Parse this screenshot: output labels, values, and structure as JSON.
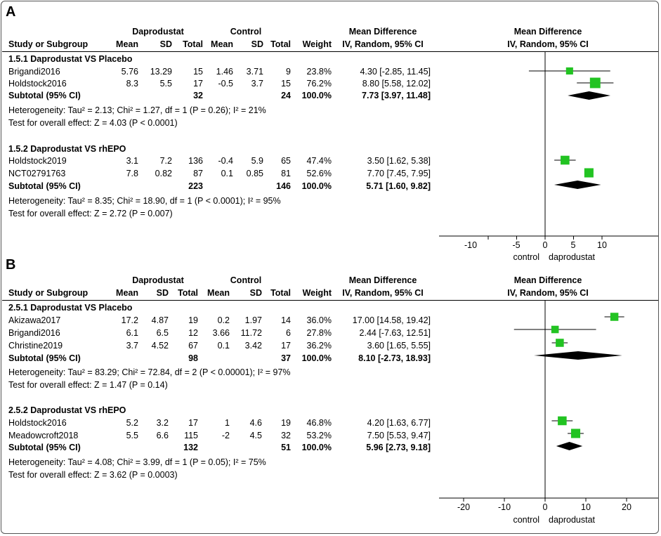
{
  "panels": [
    {
      "letter": "A",
      "header": {
        "group1": "Daprodustat",
        "group2": "Control",
        "md_title": "Mean Difference",
        "md_sub": "IV, Random, 95% CI",
        "plot_title": "Mean Difference",
        "plot_sub": "IV, Random, 95% CI",
        "cols": [
          "Study or Subgroup",
          "Mean",
          "SD",
          "Total",
          "Mean",
          "SD",
          "Total",
          "Weight"
        ]
      },
      "subgroups": [
        {
          "title": "1.5.1 Daprodustat VS Placebo",
          "studies": [
            {
              "name": "Brigandi2016",
              "m1": "5.76",
              "sd1": "13.29",
              "n1": "15",
              "m2": "1.46",
              "sd2": "3.71",
              "n2": "9",
              "weight": "23.8%",
              "ci": "4.30 [-2.85, 11.45]",
              "est": 4.3,
              "lo": -2.85,
              "hi": 11.45,
              "w": 23.8
            },
            {
              "name": "Holdstock2016",
              "m1": "8.3",
              "sd1": "5.5",
              "n1": "17",
              "m2": "-0.5",
              "sd2": "3.7",
              "n2": "15",
              "weight": "76.2%",
              "ci": "8.80 [5.58, 12.02]",
              "est": 8.8,
              "lo": 5.58,
              "hi": 12.02,
              "w": 76.2
            }
          ],
          "subtotal": {
            "label": "Subtotal (95% CI)",
            "n1": "32",
            "n2": "24",
            "weight": "100.0%",
            "ci": "7.73 [3.97, 11.48]",
            "est": 7.73,
            "lo": 3.97,
            "hi": 11.48
          },
          "heterogeneity": "Heterogeneity: Tau² = 2.13; Chi² = 1.27, df = 1 (P = 0.26); I² = 21%",
          "overall": "Test for overall effect: Z = 4.03 (P < 0.0001)"
        },
        {
          "title": "1.5.2 Daprodustat VS rhEPO",
          "studies": [
            {
              "name": "Holdstock2019",
              "m1": "3.1",
              "sd1": "7.2",
              "n1": "136",
              "m2": "-0.4",
              "sd2": "5.9",
              "n2": "65",
              "weight": "47.4%",
              "ci": "3.50 [1.62, 5.38]",
              "est": 3.5,
              "lo": 1.62,
              "hi": 5.38,
              "w": 47.4
            },
            {
              "name": "NCT02791763",
              "m1": "7.8",
              "sd1": "0.82",
              "n1": "87",
              "m2": "0.1",
              "sd2": "0.85",
              "n2": "81",
              "weight": "52.6%",
              "ci": "7.70 [7.45, 7.95]",
              "est": 7.7,
              "lo": 7.45,
              "hi": 7.95,
              "w": 52.6
            }
          ],
          "subtotal": {
            "label": "Subtotal (95% CI)",
            "n1": "223",
            "n2": "146",
            "weight": "100.0%",
            "ci": "5.71 [1.60, 9.82]",
            "est": 5.71,
            "lo": 1.6,
            "hi": 9.82
          },
          "heterogeneity": "Heterogeneity: Tau² = 8.35; Chi² = 18.90, df = 1 (P < 0.0001); I² = 95%",
          "overall": "Test for overall effect: Z = 2.72 (P = 0.007)"
        }
      ],
      "axis": {
        "ticks": [
          -10,
          -5,
          0,
          5,
          10
        ],
        "tick_labels": [
          "-10",
          "-5",
          "0",
          "5",
          "10"
        ],
        "left_label": "control",
        "right_label": "daprodustat"
      }
    },
    {
      "letter": "B",
      "header": {
        "group1": "Daprodustat",
        "group2": "Control",
        "md_title": "Mean Difference",
        "md_sub": "IV, Random, 95% CI",
        "plot_title": "Mean Difference",
        "plot_sub": "IV, Random, 95% CI",
        "cols": [
          "Study or Subgroup",
          "Mean",
          "SD",
          "Total",
          "Mean",
          "SD",
          "Total",
          "Weight"
        ]
      },
      "subgroups": [
        {
          "title": "2.5.1 Daprodustat VS Placebo",
          "studies": [
            {
              "name": "Akizawa2017",
              "m1": "17.2",
              "sd1": "4.87",
              "n1": "19",
              "m2": "0.2",
              "sd2": "1.97",
              "n2": "14",
              "weight": "36.0%",
              "ci": "17.00 [14.58, 19.42]",
              "est": 17.0,
              "lo": 14.58,
              "hi": 19.42,
              "w": 36.0
            },
            {
              "name": "Brigandi2016",
              "m1": "6.1",
              "sd1": "6.5",
              "n1": "12",
              "m2": "3.66",
              "sd2": "11.72",
              "n2": "6",
              "weight": "27.8%",
              "ci": "2.44 [-7.63, 12.51]",
              "est": 2.44,
              "lo": -7.63,
              "hi": 12.51,
              "w": 27.8
            },
            {
              "name": "Christine2019",
              "m1": "3.7",
              "sd1": "4.52",
              "n1": "67",
              "m2": "0.1",
              "sd2": "3.42",
              "n2": "17",
              "weight": "36.2%",
              "ci": "3.60 [1.65, 5.55]",
              "est": 3.6,
              "lo": 1.65,
              "hi": 5.55,
              "w": 36.2
            }
          ],
          "subtotal": {
            "label": "Subtotal (95% CI)",
            "n1": "98",
            "n2": "37",
            "weight": "100.0%",
            "ci": "8.10 [-2.73, 18.93]",
            "est": 8.1,
            "lo": -2.73,
            "hi": 18.93
          },
          "heterogeneity": "Heterogeneity: Tau² = 83.29; Chi² = 72.84, df = 2 (P < 0.00001); I² = 97%",
          "overall": "Test for overall effect: Z = 1.47 (P = 0.14)"
        },
        {
          "title": "2.5.2 Daprodustat VS rhEPO",
          "studies": [
            {
              "name": "Holdstock2016",
              "m1": "5.2",
              "sd1": "3.2",
              "n1": "17",
              "m2": "1",
              "sd2": "4.6",
              "n2": "19",
              "weight": "46.8%",
              "ci": "4.20 [1.63, 6.77]",
              "est": 4.2,
              "lo": 1.63,
              "hi": 6.77,
              "w": 46.8
            },
            {
              "name": "Meadowcroft2018",
              "m1": "5.5",
              "sd1": "6.6",
              "n1": "115",
              "m2": "-2",
              "sd2": "4.5",
              "n2": "32",
              "weight": "53.2%",
              "ci": "7.50 [5.53, 9.47]",
              "est": 7.5,
              "lo": 5.53,
              "hi": 9.47,
              "w": 53.2
            }
          ],
          "subtotal": {
            "label": "Subtotal (95% CI)",
            "n1": "132",
            "n2": "51",
            "weight": "100.0%",
            "ci": "5.96 [2.73, 9.18]",
            "est": 5.96,
            "lo": 2.73,
            "hi": 9.18
          },
          "heterogeneity": "Heterogeneity: Tau² = 4.08; Chi² = 3.99, df = 1 (P = 0.05); I² = 75%",
          "overall": "Test for overall effect: Z = 3.62 (P = 0.0003)"
        }
      ],
      "axis": {
        "ticks": [
          -20,
          -10,
          0,
          10,
          20
        ],
        "tick_labels": [
          "-20",
          "-10",
          "0",
          "10",
          "20"
        ],
        "left_label": "control",
        "right_label": "daprodustat"
      }
    }
  ],
  "chart_data": [
    {
      "type": "forest",
      "title": "A",
      "xlabel": "Mean Difference (IV, Random, 95% CI)",
      "xlim": [
        -20,
        20
      ],
      "x_ticks": [
        -10,
        -5,
        0,
        5,
        10
      ],
      "series": [
        {
          "name": "Brigandi2016",
          "estimate": 4.3,
          "ci": [
            -2.85,
            11.45
          ],
          "weight": 23.8
        },
        {
          "name": "Holdstock2016",
          "estimate": 8.8,
          "ci": [
            5.58,
            12.02
          ],
          "weight": 76.2
        },
        {
          "name": "Subtotal 1.5.1",
          "estimate": 7.73,
          "ci": [
            3.97,
            11.48
          ]
        },
        {
          "name": "Holdstock2019",
          "estimate": 3.5,
          "ci": [
            1.62,
            5.38
          ],
          "weight": 47.4
        },
        {
          "name": "NCT02791763",
          "estimate": 7.7,
          "ci": [
            7.45,
            7.95
          ],
          "weight": 52.6
        },
        {
          "name": "Subtotal 1.5.2",
          "estimate": 5.71,
          "ci": [
            1.6,
            9.82
          ]
        }
      ]
    },
    {
      "type": "forest",
      "title": "B",
      "xlabel": "Mean Difference (IV, Random, 95% CI)",
      "xlim": [
        -27,
        27
      ],
      "x_ticks": [
        -20,
        -10,
        0,
        10,
        20
      ],
      "series": [
        {
          "name": "Akizawa2017",
          "estimate": 17.0,
          "ci": [
            14.58,
            19.42
          ],
          "weight": 36.0
        },
        {
          "name": "Brigandi2016",
          "estimate": 2.44,
          "ci": [
            -7.63,
            12.51
          ],
          "weight": 27.8
        },
        {
          "name": "Christine2019",
          "estimate": 3.6,
          "ci": [
            1.65,
            5.55
          ],
          "weight": 36.2
        },
        {
          "name": "Subtotal 2.5.1",
          "estimate": 8.1,
          "ci": [
            -2.73,
            18.93
          ]
        },
        {
          "name": "Holdstock2016",
          "estimate": 4.2,
          "ci": [
            1.63,
            6.77
          ],
          "weight": 46.8
        },
        {
          "name": "Meadowcroft2018",
          "estimate": 7.5,
          "ci": [
            5.53,
            9.47
          ],
          "weight": 53.2
        },
        {
          "name": "Subtotal 2.5.2",
          "estimate": 5.96,
          "ci": [
            2.73,
            9.18
          ]
        }
      ]
    }
  ]
}
